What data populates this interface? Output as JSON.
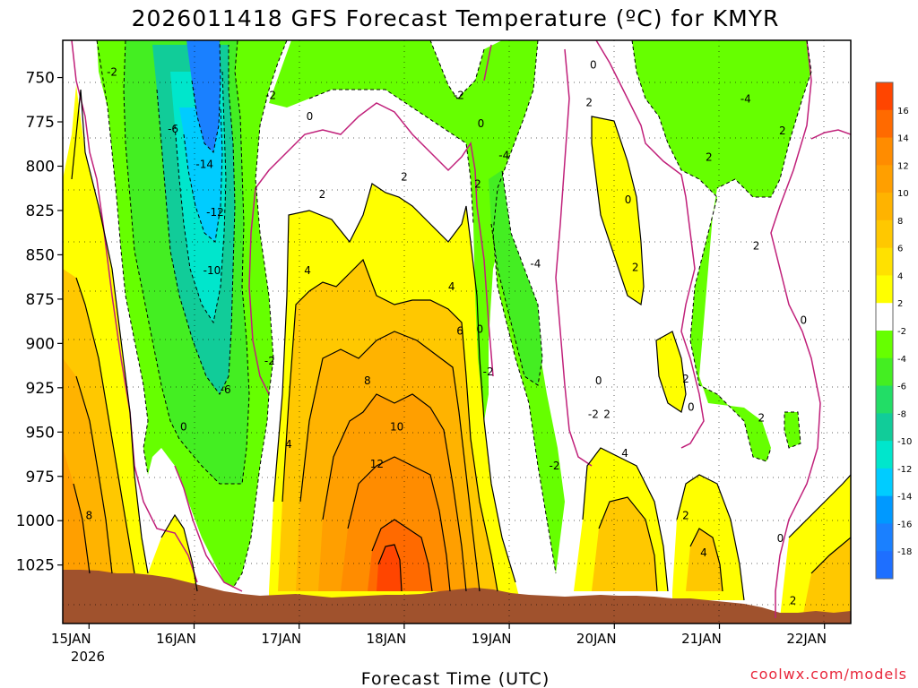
{
  "chart_data": {
    "type": "heatmap",
    "title": "2026011418 GFS Forecast Temperature (ºC) for KMYR",
    "xlabel": "Forecast Time (UTC)",
    "ylabel": "",
    "credit": "coolwx.com/models",
    "y_axis": {
      "ticks": [
        "750",
        "775",
        "800",
        "825",
        "850",
        "875",
        "900",
        "925",
        "950",
        "975",
        "1000",
        "1025"
      ],
      "values": [
        750,
        775,
        800,
        825,
        850,
        875,
        900,
        925,
        950,
        975,
        1000,
        1025
      ],
      "range": [
        729,
        1058
      ],
      "reversed": true
    },
    "x_axis": {
      "ticks": [
        "15JAN",
        "16JAN",
        "17JAN",
        "18JAN",
        "19JAN",
        "20JAN",
        "21JAN",
        "22JAN"
      ],
      "values": [
        0.25,
        1.25,
        2.25,
        3.25,
        4.25,
        5.25,
        6.25,
        7.25
      ],
      "year_label": "2026",
      "range": [
        0,
        7.5
      ]
    },
    "colorbar": {
      "labels": [
        "16",
        "14",
        "12",
        "10",
        "8",
        "6",
        "4",
        "2",
        "-2",
        "-4",
        "-6",
        "-8",
        "-10",
        "-12",
        "-14",
        "-16",
        "-18"
      ],
      "colors": [
        "#ff4500",
        "#ff6a00",
        "#ff8c00",
        "#ff9f00",
        "#ffb300",
        "#ffc800",
        "#ffe100",
        "#ffff00",
        "#ffffff",
        "#66ff00",
        "#44ee22",
        "#22dd66",
        "#11cc99",
        "#00e6cc",
        "#00ccff",
        "#0099ff",
        "#1a80ff",
        "#1e6fff"
      ]
    },
    "series": [
      {
        "name": "freezing-line (0°C)",
        "color": "#c0207a"
      },
      {
        "name": "isotherms (°C)",
        "color": "#000000"
      }
    ],
    "contour_labels": [
      {
        "text": "-2",
        "x": 0.47,
        "p": 747
      },
      {
        "text": "-6",
        "x": 1.05,
        "p": 779
      },
      {
        "text": "-14",
        "x": 1.35,
        "p": 799
      },
      {
        "text": "-12",
        "x": 1.45,
        "p": 826
      },
      {
        "text": "-10",
        "x": 1.42,
        "p": 859
      },
      {
        "text": "-6",
        "x": 1.55,
        "p": 926
      },
      {
        "text": "-2",
        "x": 1.98,
        "p": 760
      },
      {
        "text": "-2",
        "x": 1.97,
        "p": 910
      },
      {
        "text": "0",
        "x": 2.35,
        "p": 772
      },
      {
        "text": "0",
        "x": 1.15,
        "p": 947
      },
      {
        "text": "2",
        "x": 2.47,
        "p": 816
      },
      {
        "text": "2",
        "x": 3.25,
        "p": 806
      },
      {
        "text": "2",
        "x": 3.95,
        "p": 810
      },
      {
        "text": "4",
        "x": 2.33,
        "p": 859
      },
      {
        "text": "4",
        "x": 3.7,
        "p": 868
      },
      {
        "text": "6",
        "x": 3.78,
        "p": 893
      },
      {
        "text": "8",
        "x": 2.9,
        "p": 921
      },
      {
        "text": "10",
        "x": 3.18,
        "p": 947
      },
      {
        "text": "12",
        "x": 2.99,
        "p": 968
      },
      {
        "text": "4",
        "x": 2.15,
        "p": 957
      },
      {
        "text": "8",
        "x": 0.25,
        "p": 997
      },
      {
        "text": "-2",
        "x": 3.77,
        "p": 760
      },
      {
        "text": "0",
        "x": 3.98,
        "p": 776
      },
      {
        "text": "-4",
        "x": 4.2,
        "p": 794
      },
      {
        "text": "-4",
        "x": 4.5,
        "p": 855
      },
      {
        "text": "0",
        "x": 3.97,
        "p": 892
      },
      {
        "text": "-2",
        "x": 4.05,
        "p": 916
      },
      {
        "text": "-2",
        "x": 4.68,
        "p": 969
      },
      {
        "text": "-2",
        "x": 5.05,
        "p": 940
      },
      {
        "text": "2",
        "x": 5.18,
        "p": 940
      },
      {
        "text": "0",
        "x": 5.05,
        "p": 743
      },
      {
        "text": "2",
        "x": 5.01,
        "p": 764
      },
      {
        "text": "0",
        "x": 5.38,
        "p": 819
      },
      {
        "text": "2",
        "x": 5.45,
        "p": 857
      },
      {
        "text": "0",
        "x": 5.1,
        "p": 921
      },
      {
        "text": "4",
        "x": 5.35,
        "p": 962
      },
      {
        "text": "2",
        "x": 5.93,
        "p": 920
      },
      {
        "text": "0",
        "x": 5.98,
        "p": 936
      },
      {
        "text": "2",
        "x": 6.15,
        "p": 795
      },
      {
        "text": "2",
        "x": 6.85,
        "p": 780
      },
      {
        "text": "-4",
        "x": 6.5,
        "p": 762
      },
      {
        "text": "2",
        "x": 6.6,
        "p": 845
      },
      {
        "text": "0",
        "x": 7.05,
        "p": 887
      },
      {
        "text": "2",
        "x": 6.65,
        "p": 942
      },
      {
        "text": "2",
        "x": 5.93,
        "p": 997
      },
      {
        "text": "4",
        "x": 6.1,
        "p": 1018
      },
      {
        "text": "0",
        "x": 6.83,
        "p": 1010
      },
      {
        "text": "2",
        "x": 6.95,
        "p": 1045
      }
    ]
  }
}
